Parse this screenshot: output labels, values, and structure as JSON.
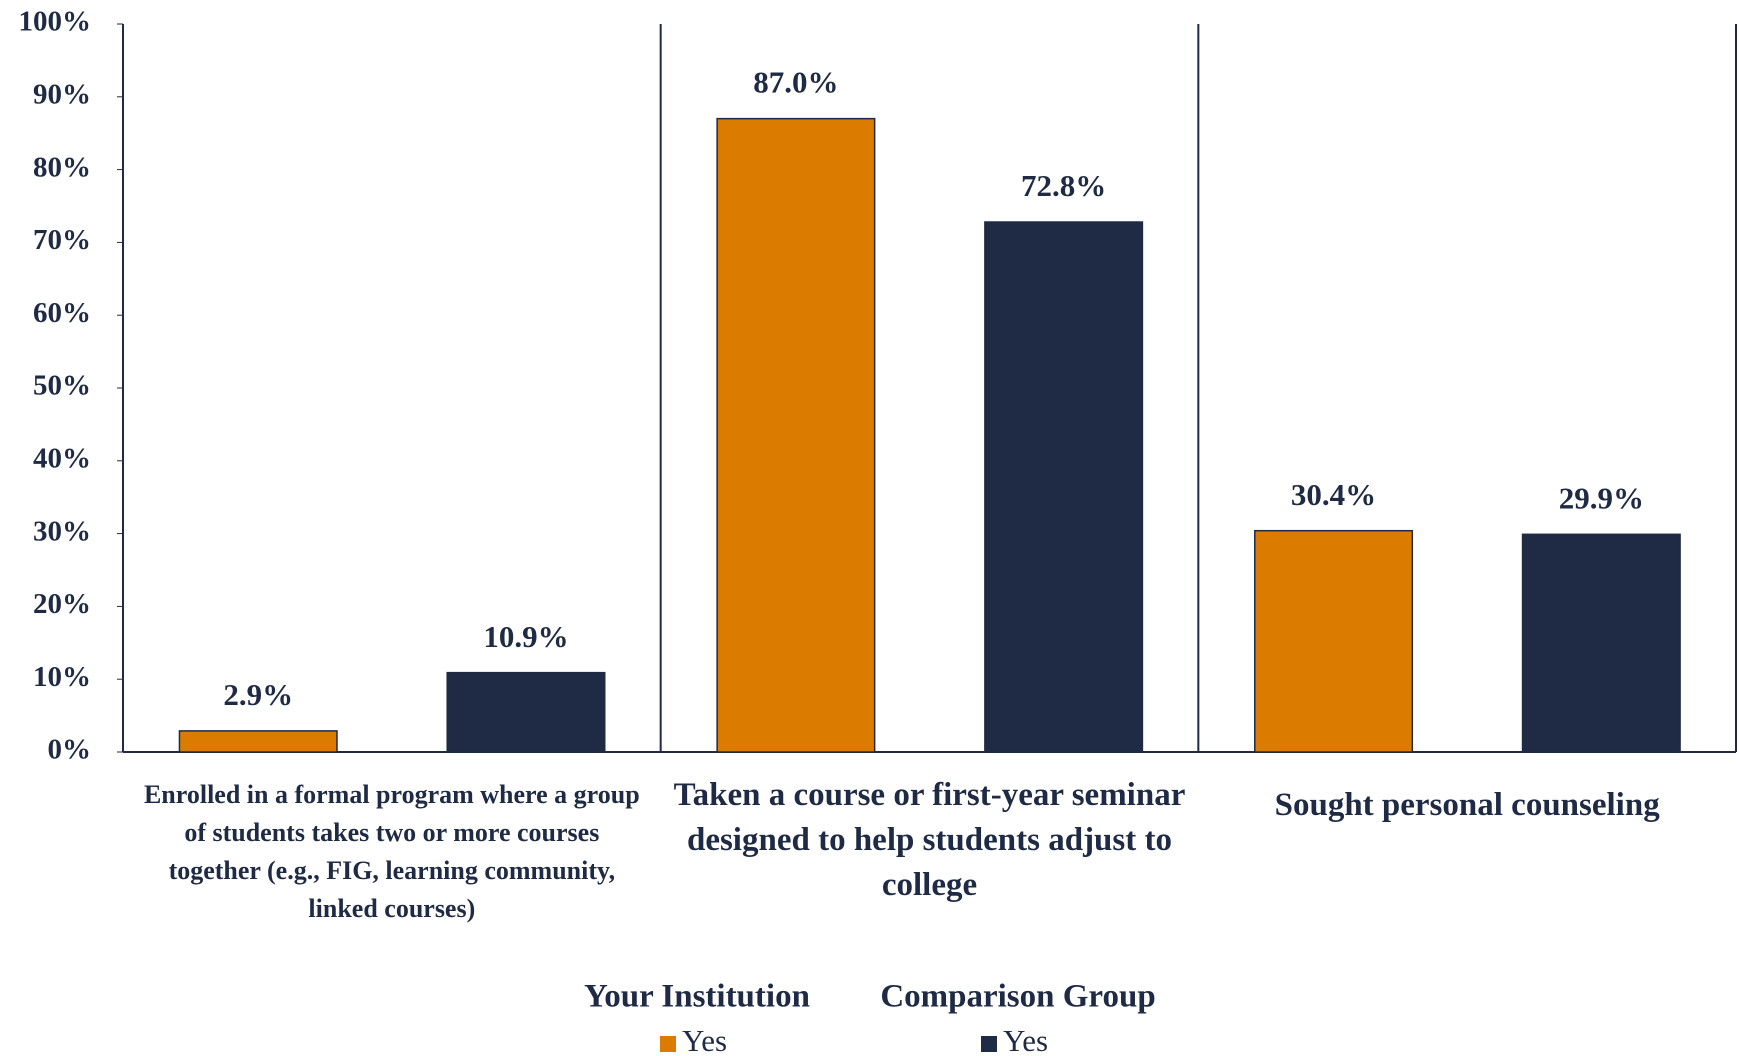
{
  "chart_data": {
    "type": "bar",
    "categories": [
      "Enrolled in a formal program where a group of students takes two or more courses together (e.g., FIG, learning community, linked courses)",
      "Taken a course or first-year seminar designed to help students adjust to college",
      "Sought personal counseling"
    ],
    "series": [
      {
        "name": "Yes",
        "group": "Your Institution",
        "color": "#db7b00",
        "values": [
          2.9,
          87.0,
          30.4
        ],
        "value_labels": [
          "2.9%",
          "87.0%",
          "30.4%"
        ]
      },
      {
        "name": "Yes",
        "group": "Comparison Group",
        "color": "#1f2a44",
        "values": [
          10.9,
          72.8,
          29.9
        ],
        "value_labels": [
          "10.9%",
          "72.8%",
          "29.9%"
        ]
      }
    ],
    "ylim": [
      0,
      100
    ],
    "yticks": [
      {
        "value": 0,
        "label": "0%"
      },
      {
        "value": 10,
        "label": "10%"
      },
      {
        "value": 20,
        "label": "20%"
      },
      {
        "value": 30,
        "label": "30%"
      },
      {
        "value": 40,
        "label": "40%"
      },
      {
        "value": 50,
        "label": "50%"
      },
      {
        "value": 60,
        "label": "60%"
      },
      {
        "value": 70,
        "label": "70%"
      },
      {
        "value": 80,
        "label": "80%"
      },
      {
        "value": 90,
        "label": "90%"
      },
      {
        "value": 100,
        "label": "100%"
      }
    ],
    "legend": "bottom"
  }
}
